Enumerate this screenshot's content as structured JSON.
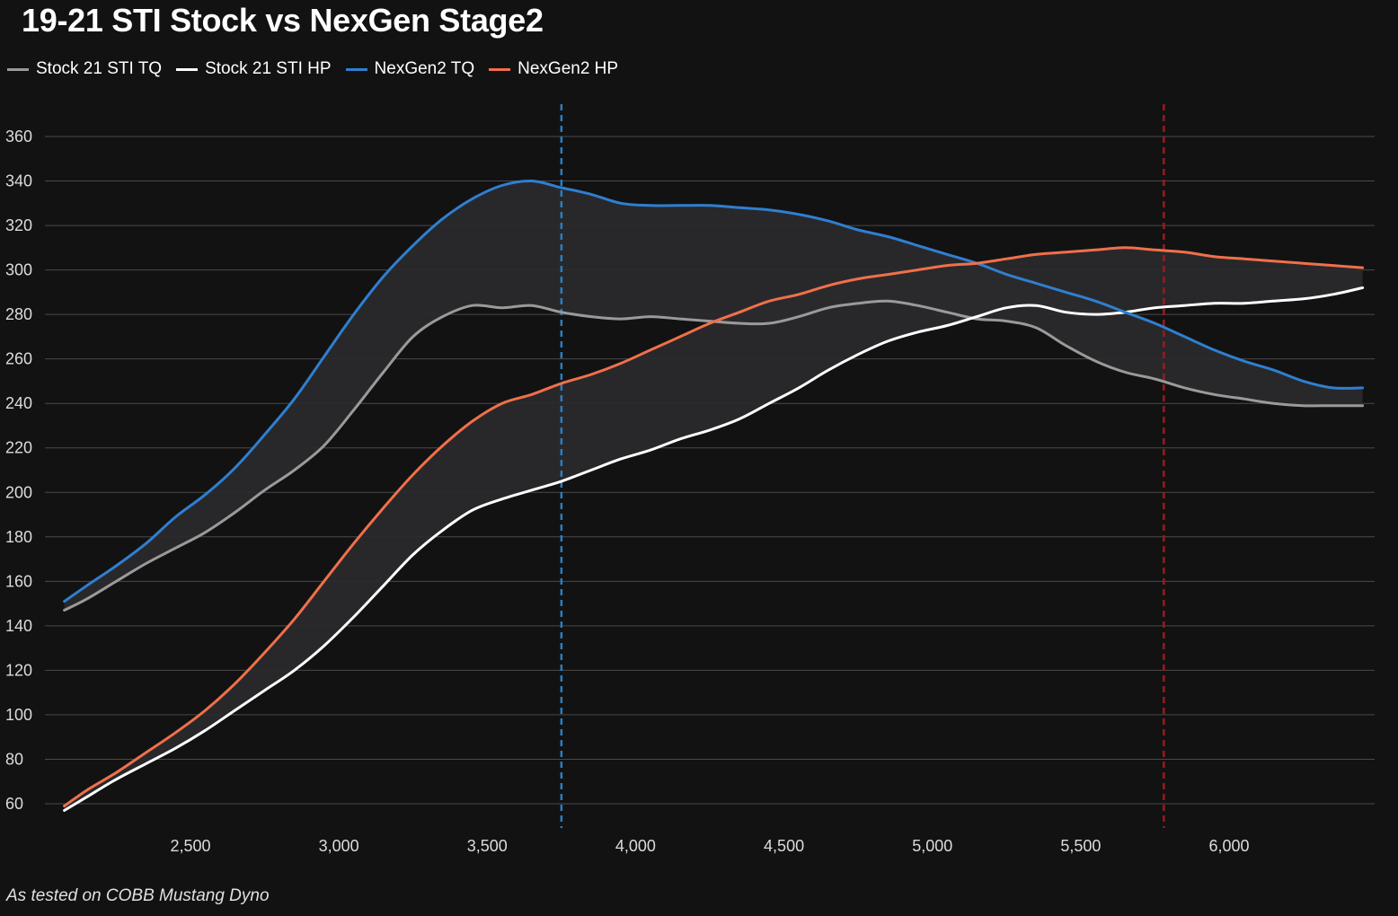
{
  "chart_data": {
    "type": "line",
    "title": "19-21 STI Stock vs NexGen Stage2",
    "xlabel": "",
    "ylabel": "",
    "xlim": [
      2050,
      6500
    ],
    "ylim": [
      50,
      370
    ],
    "x_ticks": [
      2500,
      3000,
      3500,
      4000,
      4500,
      5000,
      5500,
      6000
    ],
    "x_tick_labels": [
      "2,500",
      "3,000",
      "3,500",
      "4,000",
      "4,500",
      "5,000",
      "5,500",
      "6,000"
    ],
    "y_ticks": [
      60,
      80,
      100,
      120,
      140,
      160,
      180,
      200,
      220,
      240,
      260,
      280,
      300,
      320,
      340,
      360
    ],
    "y_tick_labels": [
      "60",
      "80",
      "100",
      "120",
      "140",
      "160",
      "180",
      "200",
      "220",
      "240",
      "260",
      "280",
      "300",
      "320",
      "340",
      "360"
    ],
    "grid": "horizontal",
    "legend_position": "top-left",
    "x": [
      2075,
      2150,
      2250,
      2350,
      2450,
      2550,
      2650,
      2750,
      2850,
      2950,
      3050,
      3150,
      3250,
      3350,
      3450,
      3550,
      3650,
      3750,
      3850,
      3950,
      4050,
      4150,
      4250,
      4350,
      4450,
      4550,
      4650,
      4750,
      4850,
      4950,
      5050,
      5150,
      5250,
      5350,
      5450,
      5550,
      5650,
      5750,
      5850,
      5950,
      6050,
      6150,
      6250,
      6350,
      6450
    ],
    "series": [
      {
        "name": "Stock 21 STI TQ",
        "color": "#9a9a9a",
        "values": [
          147,
          152,
          160,
          168,
          175,
          182,
          191,
          201,
          210,
          221,
          237,
          254,
          270,
          279,
          284,
          283,
          284,
          281,
          279,
          278,
          279,
          278,
          277,
          276,
          276,
          279,
          283,
          285,
          286,
          284,
          281,
          278,
          277,
          274,
          266,
          259,
          254,
          251,
          247,
          244,
          242,
          240,
          239,
          239,
          239
        ]
      },
      {
        "name": "Stock 21 STI HP",
        "color": "#ffffff",
        "values": [
          57,
          63,
          71,
          78,
          85,
          93,
          102,
          111,
          120,
          131,
          144,
          158,
          172,
          183,
          192,
          197,
          201,
          205,
          210,
          215,
          219,
          224,
          228,
          233,
          240,
          247,
          255,
          262,
          268,
          272,
          275,
          279,
          283,
          284,
          281,
          280,
          281,
          283,
          284,
          285,
          285,
          286,
          287,
          289,
          292
        ]
      },
      {
        "name": "NexGen2 TQ",
        "color": "#2f7fd0",
        "values": [
          151,
          158,
          167,
          177,
          189,
          199,
          211,
          226,
          242,
          261,
          280,
          297,
          311,
          323,
          332,
          338,
          340,
          337,
          334,
          330,
          329,
          329,
          329,
          328,
          327,
          325,
          322,
          318,
          315,
          311,
          307,
          303,
          298,
          294,
          290,
          286,
          281,
          276,
          270,
          264,
          259,
          255,
          250,
          247,
          247
        ]
      },
      {
        "name": "NexGen2 HP",
        "color": "#f0704a",
        "values": [
          59,
          66,
          74,
          83,
          92,
          102,
          114,
          128,
          143,
          160,
          177,
          193,
          208,
          221,
          232,
          240,
          244,
          249,
          253,
          258,
          264,
          270,
          276,
          281,
          286,
          289,
          293,
          296,
          298,
          300,
          302,
          303,
          305,
          307,
          308,
          309,
          310,
          309,
          308,
          306,
          305,
          304,
          303,
          302,
          301
        ]
      }
    ],
    "vertical_markers": [
      {
        "x": 3750,
        "color": "#2a7fc0"
      },
      {
        "x": 5780,
        "color": "#a01818"
      }
    ],
    "footnote": "As tested on COBB Mustang Dyno"
  },
  "legend": {
    "items": [
      {
        "label": "Stock 21 STI TQ",
        "color": "#9a9a9a"
      },
      {
        "label": "Stock 21 STI HP",
        "color": "#ffffff"
      },
      {
        "label": "NexGen2 TQ",
        "color": "#2f7fd0"
      },
      {
        "label": "NexGen2 HP",
        "color": "#f0704a"
      }
    ]
  }
}
